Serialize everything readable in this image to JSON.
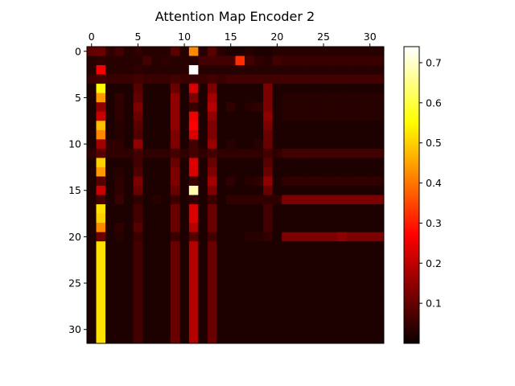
{
  "chart_data": {
    "type": "heatmap",
    "title": "Attention Map Encoder 2",
    "xlabel": "",
    "ylabel": "",
    "rows": 32,
    "cols": 32,
    "x_ticks": [
      0,
      5,
      10,
      15,
      20,
      25,
      30
    ],
    "y_ticks": [
      0,
      5,
      10,
      15,
      20,
      25,
      30
    ],
    "x_tick_position": "top",
    "colormap": "hot",
    "vmin": 0.0,
    "vmax": 0.74,
    "colorbar": {
      "ticks": [
        0.1,
        0.2,
        0.3,
        0.4,
        0.5,
        0.6,
        0.7
      ],
      "labels": [
        "0.1",
        "0.2",
        "0.3",
        "0.4",
        "0.5",
        "0.6",
        "0.7"
      ],
      "placement": "right"
    },
    "values": [
      [
        0.09,
        0.1,
        0.04,
        0.06,
        0.03,
        0.04,
        0.03,
        0.03,
        0.03,
        0.08,
        0.03,
        0.42,
        0.03,
        0.08,
        0.03,
        0.02,
        0.02,
        0.03,
        0.02,
        0.02,
        0.03,
        0.03,
        0.03,
        0.03,
        0.03,
        0.03,
        0.03,
        0.03,
        0.03,
        0.03,
        0.03,
        0.03
      ],
      [
        0.03,
        0.04,
        0.03,
        0.03,
        0.03,
        0.03,
        0.06,
        0.03,
        0.04,
        0.03,
        0.03,
        0.03,
        0.06,
        0.06,
        0.06,
        0.06,
        0.32,
        0.06,
        0.04,
        0.03,
        0.06,
        0.05,
        0.05,
        0.05,
        0.05,
        0.05,
        0.05,
        0.05,
        0.05,
        0.05,
        0.05,
        0.05
      ],
      [
        0.03,
        0.25,
        0.03,
        0.03,
        0.03,
        0.04,
        0.03,
        0.03,
        0.03,
        0.03,
        0.03,
        0.74,
        0.03,
        0.03,
        0.03,
        0.03,
        0.03,
        0.03,
        0.03,
        0.03,
        0.03,
        0.03,
        0.03,
        0.03,
        0.03,
        0.03,
        0.03,
        0.03,
        0.03,
        0.03,
        0.03,
        0.03
      ],
      [
        0.05,
        0.06,
        0.05,
        0.05,
        0.05,
        0.06,
        0.05,
        0.05,
        0.05,
        0.06,
        0.05,
        0.05,
        0.05,
        0.06,
        0.05,
        0.06,
        0.06,
        0.06,
        0.06,
        0.06,
        0.06,
        0.06,
        0.06,
        0.06,
        0.06,
        0.06,
        0.06,
        0.06,
        0.06,
        0.06,
        0.06,
        0.06
      ],
      [
        0.02,
        0.55,
        0.02,
        0.02,
        0.02,
        0.08,
        0.02,
        0.02,
        0.02,
        0.1,
        0.02,
        0.22,
        0.02,
        0.12,
        0.02,
        0.02,
        0.02,
        0.02,
        0.02,
        0.12,
        0.02,
        0.02,
        0.02,
        0.02,
        0.02,
        0.02,
        0.02,
        0.02,
        0.02,
        0.02,
        0.02,
        0.02
      ],
      [
        0.02,
        0.44,
        0.02,
        0.04,
        0.02,
        0.09,
        0.02,
        0.02,
        0.02,
        0.14,
        0.02,
        0.12,
        0.02,
        0.16,
        0.02,
        0.02,
        0.02,
        0.02,
        0.02,
        0.12,
        0.02,
        0.03,
        0.03,
        0.03,
        0.03,
        0.03,
        0.03,
        0.03,
        0.03,
        0.03,
        0.03,
        0.03
      ],
      [
        0.02,
        0.14,
        0.02,
        0.04,
        0.02,
        0.12,
        0.02,
        0.02,
        0.02,
        0.14,
        0.02,
        0.05,
        0.02,
        0.18,
        0.02,
        0.04,
        0.02,
        0.03,
        0.04,
        0.12,
        0.02,
        0.03,
        0.03,
        0.03,
        0.03,
        0.03,
        0.03,
        0.03,
        0.03,
        0.03,
        0.03,
        0.03
      ],
      [
        0.02,
        0.2,
        0.02,
        0.04,
        0.02,
        0.1,
        0.02,
        0.02,
        0.02,
        0.14,
        0.02,
        0.24,
        0.02,
        0.14,
        0.02,
        0.02,
        0.02,
        0.02,
        0.02,
        0.14,
        0.02,
        0.03,
        0.03,
        0.03,
        0.03,
        0.03,
        0.03,
        0.03,
        0.03,
        0.03,
        0.03,
        0.03
      ],
      [
        0.02,
        0.48,
        0.02,
        0.03,
        0.02,
        0.08,
        0.02,
        0.02,
        0.02,
        0.14,
        0.02,
        0.26,
        0.02,
        0.12,
        0.02,
        0.02,
        0.02,
        0.02,
        0.02,
        0.12,
        0.02,
        0.02,
        0.02,
        0.02,
        0.02,
        0.02,
        0.02,
        0.02,
        0.02,
        0.02,
        0.02,
        0.02
      ],
      [
        0.02,
        0.42,
        0.02,
        0.03,
        0.02,
        0.07,
        0.02,
        0.02,
        0.02,
        0.12,
        0.02,
        0.22,
        0.02,
        0.12,
        0.02,
        0.02,
        0.02,
        0.02,
        0.02,
        0.1,
        0.02,
        0.02,
        0.02,
        0.02,
        0.02,
        0.02,
        0.02,
        0.02,
        0.02,
        0.02,
        0.02,
        0.02
      ],
      [
        0.02,
        0.16,
        0.04,
        0.04,
        0.02,
        0.14,
        0.02,
        0.02,
        0.02,
        0.12,
        0.02,
        0.06,
        0.02,
        0.15,
        0.02,
        0.03,
        0.02,
        0.02,
        0.03,
        0.1,
        0.02,
        0.02,
        0.02,
        0.02,
        0.02,
        0.02,
        0.02,
        0.02,
        0.02,
        0.02,
        0.02,
        0.02
      ],
      [
        0.04,
        0.08,
        0.04,
        0.04,
        0.04,
        0.06,
        0.04,
        0.04,
        0.04,
        0.06,
        0.04,
        0.06,
        0.04,
        0.06,
        0.04,
        0.04,
        0.04,
        0.04,
        0.04,
        0.06,
        0.04,
        0.06,
        0.06,
        0.06,
        0.06,
        0.06,
        0.06,
        0.06,
        0.06,
        0.06,
        0.06,
        0.06
      ],
      [
        0.02,
        0.5,
        0.02,
        0.02,
        0.02,
        0.06,
        0.02,
        0.02,
        0.02,
        0.1,
        0.02,
        0.22,
        0.02,
        0.1,
        0.02,
        0.02,
        0.02,
        0.02,
        0.02,
        0.08,
        0.02,
        0.02,
        0.02,
        0.02,
        0.02,
        0.02,
        0.02,
        0.02,
        0.02,
        0.02,
        0.02,
        0.02
      ],
      [
        0.02,
        0.44,
        0.02,
        0.03,
        0.02,
        0.07,
        0.02,
        0.02,
        0.02,
        0.12,
        0.02,
        0.22,
        0.02,
        0.12,
        0.02,
        0.02,
        0.02,
        0.02,
        0.02,
        0.1,
        0.02,
        0.02,
        0.02,
        0.02,
        0.02,
        0.02,
        0.02,
        0.02,
        0.02,
        0.02,
        0.02,
        0.02
      ],
      [
        0.02,
        0.08,
        0.02,
        0.04,
        0.02,
        0.12,
        0.02,
        0.02,
        0.02,
        0.12,
        0.02,
        0.05,
        0.02,
        0.16,
        0.02,
        0.04,
        0.02,
        0.03,
        0.04,
        0.14,
        0.02,
        0.04,
        0.04,
        0.04,
        0.04,
        0.04,
        0.04,
        0.04,
        0.04,
        0.04,
        0.04,
        0.04
      ],
      [
        0.02,
        0.2,
        0.02,
        0.04,
        0.02,
        0.1,
        0.02,
        0.02,
        0.02,
        0.1,
        0.02,
        0.68,
        0.02,
        0.12,
        0.02,
        0.02,
        0.02,
        0.02,
        0.02,
        0.1,
        0.02,
        0.02,
        0.02,
        0.02,
        0.02,
        0.02,
        0.02,
        0.02,
        0.02,
        0.02,
        0.02,
        0.02
      ],
      [
        0.02,
        0.06,
        0.02,
        0.05,
        0.02,
        0.04,
        0.02,
        0.03,
        0.02,
        0.05,
        0.02,
        0.04,
        0.02,
        0.05,
        0.02,
        0.04,
        0.04,
        0.04,
        0.04,
        0.04,
        0.04,
        0.12,
        0.12,
        0.12,
        0.12,
        0.12,
        0.12,
        0.12,
        0.12,
        0.12,
        0.12,
        0.12
      ],
      [
        0.02,
        0.52,
        0.02,
        0.02,
        0.02,
        0.06,
        0.02,
        0.02,
        0.02,
        0.1,
        0.02,
        0.22,
        0.02,
        0.1,
        0.02,
        0.02,
        0.02,
        0.02,
        0.02,
        0.06,
        0.02,
        0.02,
        0.02,
        0.02,
        0.02,
        0.02,
        0.02,
        0.02,
        0.02,
        0.02,
        0.02,
        0.02
      ],
      [
        0.02,
        0.5,
        0.02,
        0.02,
        0.02,
        0.06,
        0.02,
        0.02,
        0.02,
        0.1,
        0.02,
        0.22,
        0.02,
        0.1,
        0.02,
        0.02,
        0.02,
        0.02,
        0.02,
        0.06,
        0.02,
        0.02,
        0.02,
        0.02,
        0.02,
        0.02,
        0.02,
        0.02,
        0.02,
        0.02,
        0.02,
        0.02
      ],
      [
        0.02,
        0.42,
        0.02,
        0.04,
        0.02,
        0.08,
        0.02,
        0.02,
        0.02,
        0.1,
        0.02,
        0.18,
        0.02,
        0.1,
        0.02,
        0.02,
        0.02,
        0.02,
        0.02,
        0.06,
        0.02,
        0.02,
        0.02,
        0.02,
        0.02,
        0.02,
        0.02,
        0.02,
        0.02,
        0.02,
        0.02,
        0.02
      ],
      [
        0.02,
        0.1,
        0.02,
        0.03,
        0.02,
        0.05,
        0.02,
        0.02,
        0.02,
        0.05,
        0.02,
        0.08,
        0.02,
        0.06,
        0.02,
        0.02,
        0.02,
        0.03,
        0.03,
        0.04,
        0.02,
        0.12,
        0.12,
        0.12,
        0.12,
        0.12,
        0.12,
        0.14,
        0.12,
        0.12,
        0.12,
        0.12
      ],
      [
        0.02,
        0.52,
        0.02,
        0.02,
        0.02,
        0.06,
        0.02,
        0.02,
        0.02,
        0.1,
        0.02,
        0.18,
        0.02,
        0.1,
        0.02,
        0.02,
        0.02,
        0.02,
        0.02,
        0.02,
        0.02,
        0.02,
        0.02,
        0.02,
        0.02,
        0.02,
        0.02,
        0.02,
        0.02,
        0.02,
        0.02,
        0.02
      ],
      [
        0.02,
        0.52,
        0.02,
        0.02,
        0.02,
        0.06,
        0.02,
        0.02,
        0.02,
        0.1,
        0.02,
        0.18,
        0.02,
        0.1,
        0.02,
        0.02,
        0.02,
        0.02,
        0.02,
        0.02,
        0.02,
        0.02,
        0.02,
        0.02,
        0.02,
        0.02,
        0.02,
        0.02,
        0.02,
        0.02,
        0.02,
        0.02
      ],
      [
        0.02,
        0.52,
        0.02,
        0.02,
        0.02,
        0.06,
        0.02,
        0.02,
        0.02,
        0.1,
        0.02,
        0.18,
        0.02,
        0.1,
        0.02,
        0.02,
        0.02,
        0.02,
        0.02,
        0.02,
        0.02,
        0.02,
        0.02,
        0.02,
        0.02,
        0.02,
        0.02,
        0.02,
        0.02,
        0.02,
        0.02,
        0.02
      ],
      [
        0.02,
        0.52,
        0.02,
        0.02,
        0.02,
        0.06,
        0.02,
        0.02,
        0.02,
        0.1,
        0.02,
        0.18,
        0.02,
        0.1,
        0.02,
        0.02,
        0.02,
        0.02,
        0.02,
        0.02,
        0.02,
        0.02,
        0.02,
        0.02,
        0.02,
        0.02,
        0.02,
        0.02,
        0.02,
        0.02,
        0.02,
        0.02
      ],
      [
        0.02,
        0.52,
        0.02,
        0.02,
        0.02,
        0.06,
        0.02,
        0.02,
        0.02,
        0.1,
        0.02,
        0.18,
        0.02,
        0.1,
        0.02,
        0.02,
        0.02,
        0.02,
        0.02,
        0.02,
        0.02,
        0.02,
        0.02,
        0.02,
        0.02,
        0.02,
        0.02,
        0.02,
        0.02,
        0.02,
        0.02,
        0.02
      ],
      [
        0.02,
        0.52,
        0.02,
        0.02,
        0.02,
        0.06,
        0.02,
        0.02,
        0.02,
        0.1,
        0.02,
        0.18,
        0.02,
        0.1,
        0.02,
        0.02,
        0.02,
        0.02,
        0.02,
        0.02,
        0.02,
        0.02,
        0.02,
        0.02,
        0.02,
        0.02,
        0.02,
        0.02,
        0.02,
        0.02,
        0.02,
        0.02
      ],
      [
        0.02,
        0.52,
        0.02,
        0.02,
        0.02,
        0.06,
        0.02,
        0.02,
        0.02,
        0.1,
        0.02,
        0.18,
        0.02,
        0.1,
        0.02,
        0.02,
        0.02,
        0.02,
        0.02,
        0.02,
        0.02,
        0.02,
        0.02,
        0.02,
        0.02,
        0.02,
        0.02,
        0.02,
        0.02,
        0.02,
        0.02,
        0.02
      ],
      [
        0.02,
        0.52,
        0.02,
        0.02,
        0.02,
        0.06,
        0.02,
        0.02,
        0.02,
        0.1,
        0.02,
        0.18,
        0.02,
        0.1,
        0.02,
        0.02,
        0.02,
        0.02,
        0.02,
        0.02,
        0.02,
        0.02,
        0.02,
        0.02,
        0.02,
        0.02,
        0.02,
        0.02,
        0.02,
        0.02,
        0.02,
        0.02
      ],
      [
        0.02,
        0.52,
        0.02,
        0.02,
        0.02,
        0.06,
        0.02,
        0.02,
        0.02,
        0.1,
        0.02,
        0.18,
        0.02,
        0.1,
        0.02,
        0.02,
        0.02,
        0.02,
        0.02,
        0.02,
        0.02,
        0.02,
        0.02,
        0.02,
        0.02,
        0.02,
        0.02,
        0.02,
        0.02,
        0.02,
        0.02,
        0.02
      ],
      [
        0.02,
        0.52,
        0.02,
        0.02,
        0.02,
        0.06,
        0.02,
        0.02,
        0.02,
        0.1,
        0.02,
        0.18,
        0.02,
        0.1,
        0.02,
        0.02,
        0.02,
        0.02,
        0.02,
        0.02,
        0.02,
        0.02,
        0.02,
        0.02,
        0.02,
        0.02,
        0.02,
        0.02,
        0.02,
        0.02,
        0.02,
        0.02
      ],
      [
        0.02,
        0.52,
        0.02,
        0.02,
        0.02,
        0.06,
        0.02,
        0.02,
        0.02,
        0.1,
        0.02,
        0.18,
        0.02,
        0.1,
        0.02,
        0.02,
        0.02,
        0.02,
        0.02,
        0.02,
        0.02,
        0.02,
        0.02,
        0.02,
        0.02,
        0.02,
        0.02,
        0.02,
        0.02,
        0.02,
        0.02,
        0.02
      ]
    ]
  }
}
